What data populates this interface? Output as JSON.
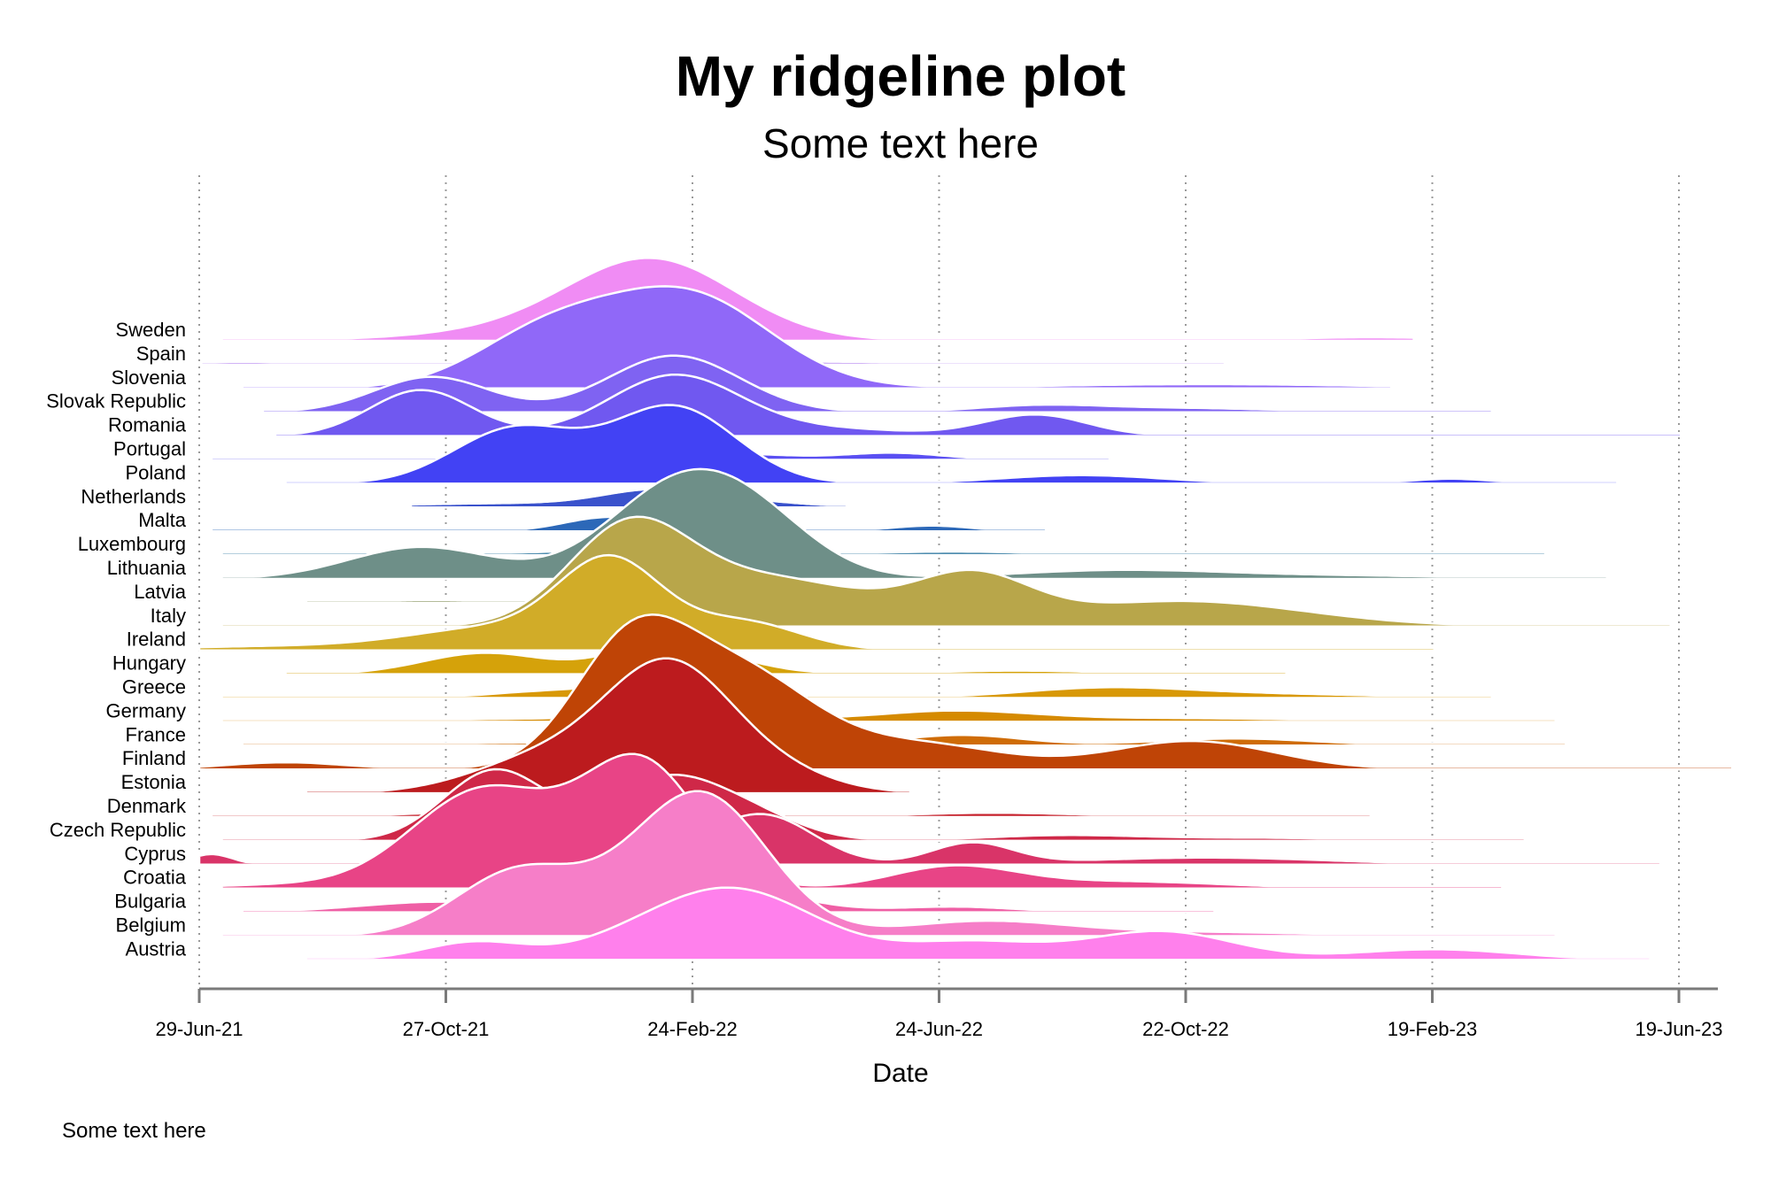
{
  "chart_data": {
    "type": "ridgeline",
    "title": "My ridgeline plot",
    "subtitle": "Some text here",
    "xlabel": "Date",
    "caption": "Some text here",
    "x_ticks": [
      "29-Jun-21",
      "27-Oct-21",
      "24-Feb-22",
      "24-Jun-22",
      "22-Oct-22",
      "19-Feb-23",
      "19-Jun-23"
    ],
    "x_range": [
      "2021-06-29",
      "2023-07-20"
    ],
    "grid": "vertical dotted",
    "series": [
      {
        "name": "Sweden",
        "color": "#f08cf4",
        "peaks": [
          [
            "2022-02-05",
            1.0,
            40
          ],
          [
            "2022-01-01",
            0.2,
            60
          ],
          [
            "2023-01-20",
            0.05,
            40
          ]
        ],
        "range": [
          "2021-07-10",
          "2023-02-10"
        ]
      },
      {
        "name": "Spain",
        "color": "#b585f0",
        "peaks": [
          [
            "2022-02-20",
            0.1,
            25
          ],
          [
            "2022-05-01",
            0.04,
            50
          ],
          [
            "2021-07-20",
            0.04,
            25
          ]
        ],
        "range": [
          "2021-06-30",
          "2022-11-10"
        ]
      },
      {
        "name": "Slovenia",
        "color": "#9068f8",
        "peaks": [
          [
            "2022-02-22",
            1.3,
            40
          ],
          [
            "2021-12-15",
            0.75,
            35
          ],
          [
            "2022-11-01",
            0.06,
            80
          ]
        ],
        "range": [
          "2021-07-20",
          "2023-01-30"
        ]
      },
      {
        "name": "Slovak Republic",
        "color": "#7f63f2",
        "peaks": [
          [
            "2022-02-15",
            0.8,
            32
          ],
          [
            "2021-10-20",
            0.5,
            28
          ],
          [
            "2022-08-10",
            0.08,
            30
          ],
          [
            "2022-10-15",
            0.06,
            50
          ]
        ],
        "range": [
          "2021-07-30",
          "2023-03-20"
        ]
      },
      {
        "name": "Romania",
        "color": "#7058f0",
        "peaks": [
          [
            "2022-02-15",
            0.85,
            32
          ],
          [
            "2021-10-15",
            0.65,
            25
          ],
          [
            "2022-08-10",
            0.3,
            25
          ],
          [
            "2022-05-01",
            0.1,
            40
          ],
          [
            "2023-03-10",
            0.03,
            60
          ]
        ],
        "range": [
          "2021-08-05",
          "2023-06-20"
        ]
      },
      {
        "name": "Portugal",
        "color": "#5a4ff2",
        "peaks": [
          [
            "2022-06-01",
            0.1,
            25
          ],
          [
            "2022-03-20",
            0.08,
            25
          ]
        ],
        "range": [
          "2021-07-05",
          "2022-09-15"
        ]
      },
      {
        "name": "Poland",
        "color": "#4242f4",
        "peaks": [
          [
            "2022-02-15",
            1.08,
            30
          ],
          [
            "2021-11-30",
            0.78,
            30
          ],
          [
            "2022-09-01",
            0.12,
            40
          ],
          [
            "2023-02-28",
            0.07,
            20
          ]
        ],
        "range": [
          "2021-08-10",
          "2023-05-20"
        ]
      },
      {
        "name": "Netherlands",
        "color": "#3a52cc",
        "peaks": [
          [
            "2022-02-05",
            0.2,
            25
          ],
          [
            "2021-12-01",
            0.06,
            60
          ],
          [
            "2022-03-20",
            0.08,
            30
          ]
        ],
        "range": [
          "2021-10-10",
          "2022-05-10"
        ]
      },
      {
        "name": "Malta",
        "color": "#2c68b8",
        "peaks": [
          [
            "2022-01-10",
            0.15,
            20
          ],
          [
            "2022-02-20",
            0.12,
            30
          ],
          [
            "2022-06-20",
            0.08,
            20
          ]
        ],
        "range": [
          "2021-07-05",
          "2022-08-15"
        ]
      },
      {
        "name": "Luxembourg",
        "color": "#377ea4",
        "peaks": [
          [
            "2022-03-01",
            0.18,
            30
          ],
          [
            "2021-12-20",
            0.04,
            40
          ],
          [
            "2022-07-01",
            0.05,
            40
          ],
          [
            "2023-02-10",
            0.03,
            60
          ]
        ],
        "range": [
          "2021-07-10",
          "2023-04-15"
        ]
      },
      {
        "name": "Lithuania",
        "color": "#6e8f88",
        "peaks": [
          [
            "2022-02-18",
            1.3,
            35
          ],
          [
            "2021-10-15",
            0.45,
            35
          ],
          [
            "2022-03-30",
            0.5,
            30
          ],
          [
            "2022-09-15",
            0.1,
            50
          ],
          [
            "2022-12-15",
            0.05,
            80
          ]
        ],
        "range": [
          "2021-07-10",
          "2023-05-15"
        ]
      },
      {
        "name": "Latvia",
        "color": "#87935c",
        "peaks": [
          [
            "2021-10-20",
            0.04,
            30
          ]
        ],
        "range": [
          "2021-08-20",
          "2022-02-10"
        ]
      },
      {
        "name": "Italy",
        "color": "#b8a64a",
        "peaks": [
          [
            "2022-01-25",
            1.45,
            30
          ],
          [
            "2022-04-20",
            0.5,
            40
          ],
          [
            "2022-07-10",
            0.65,
            28
          ],
          [
            "2022-10-20",
            0.36,
            60
          ],
          [
            "2022-03-20",
            0.2,
            30
          ]
        ],
        "range": [
          "2021-07-10",
          "2023-06-15"
        ]
      },
      {
        "name": "Ireland",
        "color": "#d1ac28",
        "peaks": [
          [
            "2022-01-15",
            1.2,
            25
          ],
          [
            "2021-11-20",
            0.3,
            40
          ],
          [
            "2022-03-20",
            0.4,
            28
          ],
          [
            "2021-08-15",
            0.06,
            60
          ]
        ],
        "range": [
          "2021-06-29",
          "2023-02-20"
        ]
      },
      {
        "name": "Hungary",
        "color": "#d5a20a",
        "peaks": [
          [
            "2022-02-05",
            0.35,
            25
          ],
          [
            "2021-11-15",
            0.3,
            30
          ],
          [
            "2022-03-10",
            0.15,
            25
          ],
          [
            "2022-08-01",
            0.05,
            40
          ]
        ],
        "range": [
          "2021-08-10",
          "2022-12-10"
        ]
      },
      {
        "name": "Greece",
        "color": "#d89806",
        "peaks": [
          [
            "2022-02-15",
            0.25,
            25
          ],
          [
            "2021-12-20",
            0.1,
            30
          ],
          [
            "2022-09-10",
            0.12,
            40
          ],
          [
            "2022-11-20",
            0.06,
            60
          ]
        ],
        "range": [
          "2021-07-10",
          "2023-03-20"
        ]
      },
      {
        "name": "Germany",
        "color": "#d58a00",
        "peaks": [
          [
            "2022-02-25",
            0.22,
            30
          ],
          [
            "2022-06-30",
            0.15,
            40
          ],
          [
            "2022-10-20",
            0.05,
            60
          ],
          [
            "2021-12-01",
            0.04,
            40
          ]
        ],
        "range": [
          "2021-07-10",
          "2023-04-20"
        ]
      },
      {
        "name": "France",
        "color": "#cf6c07",
        "peaks": [
          [
            "2022-03-10",
            0.2,
            30
          ],
          [
            "2022-07-05",
            0.15,
            30
          ],
          [
            "2022-11-15",
            0.1,
            40
          ],
          [
            "2021-12-01",
            0.04,
            40
          ]
        ],
        "range": [
          "2021-07-20",
          "2023-04-25"
        ]
      },
      {
        "name": "Finland",
        "color": "#bf4406",
        "peaks": [
          [
            "2022-01-25",
            1.7,
            28
          ],
          [
            "2022-03-20",
            1.3,
            35
          ],
          [
            "2022-06-15",
            0.35,
            40
          ],
          [
            "2022-10-25",
            0.4,
            40
          ],
          [
            "2021-08-10",
            0.1,
            30
          ],
          [
            "2023-05-10",
            0.03,
            30
          ]
        ],
        "range": [
          "2021-06-29",
          "2023-07-15"
        ]
      },
      {
        "name": "Estonia",
        "color": "#bc1b1e",
        "peaks": [
          [
            "2022-02-12",
            1.7,
            30
          ],
          [
            "2021-12-15",
            0.5,
            35
          ],
          [
            "2022-04-01",
            0.3,
            30
          ]
        ],
        "range": [
          "2021-08-20",
          "2022-06-10"
        ]
      },
      {
        "name": "Denmark",
        "color": "#c6202b",
        "peaks": [
          [
            "2022-02-10",
            0.1,
            20
          ],
          [
            "2021-11-01",
            0.06,
            30
          ],
          [
            "2022-07-20",
            0.06,
            40
          ],
          [
            "2022-11-20",
            0.03,
            40
          ]
        ],
        "range": [
          "2021-07-05",
          "2023-01-20"
        ]
      },
      {
        "name": "Czech Republic",
        "color": "#cf2848",
        "peaks": [
          [
            "2022-02-10",
            0.85,
            28
          ],
          [
            "2021-11-20",
            1.0,
            25
          ],
          [
            "2022-03-25",
            0.3,
            25
          ],
          [
            "2022-08-25",
            0.08,
            40
          ],
          [
            "2022-12-01",
            0.04,
            40
          ]
        ],
        "range": [
          "2021-07-10",
          "2023-04-05"
        ]
      },
      {
        "name": "Cyprus",
        "color": "#d93468",
        "peaks": [
          [
            "2022-01-10",
            0.5,
            30
          ],
          [
            "2022-03-30",
            0.7,
            25
          ],
          [
            "2021-07-05",
            0.15,
            10
          ],
          [
            "2022-07-10",
            0.3,
            20
          ],
          [
            "2022-11-01",
            0.1,
            60
          ]
        ],
        "range": [
          "2021-06-29",
          "2023-06-10"
        ]
      },
      {
        "name": "Croatia",
        "color": "#e84486",
        "peaks": [
          [
            "2022-01-30",
            1.75,
            28
          ],
          [
            "2021-11-15",
            1.4,
            35
          ],
          [
            "2022-07-01",
            0.3,
            30
          ],
          [
            "2022-09-20",
            0.1,
            50
          ],
          [
            "2021-08-10",
            0.05,
            40
          ]
        ],
        "range": [
          "2021-07-10",
          "2023-03-25"
        ]
      },
      {
        "name": "Bulgaria",
        "color": "#ef5fa5",
        "peaks": [
          [
            "2022-01-28",
            0.8,
            20
          ],
          [
            "2022-03-20",
            0.3,
            30
          ],
          [
            "2021-10-25",
            0.15,
            40
          ],
          [
            "2022-07-01",
            0.08,
            30
          ]
        ],
        "range": [
          "2021-07-20",
          "2022-11-05"
        ]
      },
      {
        "name": "Belgium",
        "color": "#f67ec8",
        "peaks": [
          [
            "2022-03-01",
            1.95,
            32
          ],
          [
            "2021-12-01",
            0.9,
            30
          ],
          [
            "2022-01-20",
            0.2,
            30
          ],
          [
            "2022-07-15",
            0.2,
            40
          ],
          [
            "2022-10-20",
            0.06,
            60
          ]
        ],
        "range": [
          "2021-07-10",
          "2023-04-20"
        ]
      },
      {
        "name": "Austria",
        "color": "#ff80ec",
        "peaks": [
          [
            "2022-03-15",
            1.0,
            40
          ],
          [
            "2021-11-10",
            0.25,
            25
          ],
          [
            "2022-07-10",
            0.25,
            35
          ],
          [
            "2022-10-10",
            0.4,
            35
          ],
          [
            "2023-02-20",
            0.15,
            40
          ],
          [
            "2022-01-20",
            0.1,
            30
          ]
        ],
        "range": [
          "2021-08-20",
          "2023-06-05"
        ]
      }
    ]
  }
}
